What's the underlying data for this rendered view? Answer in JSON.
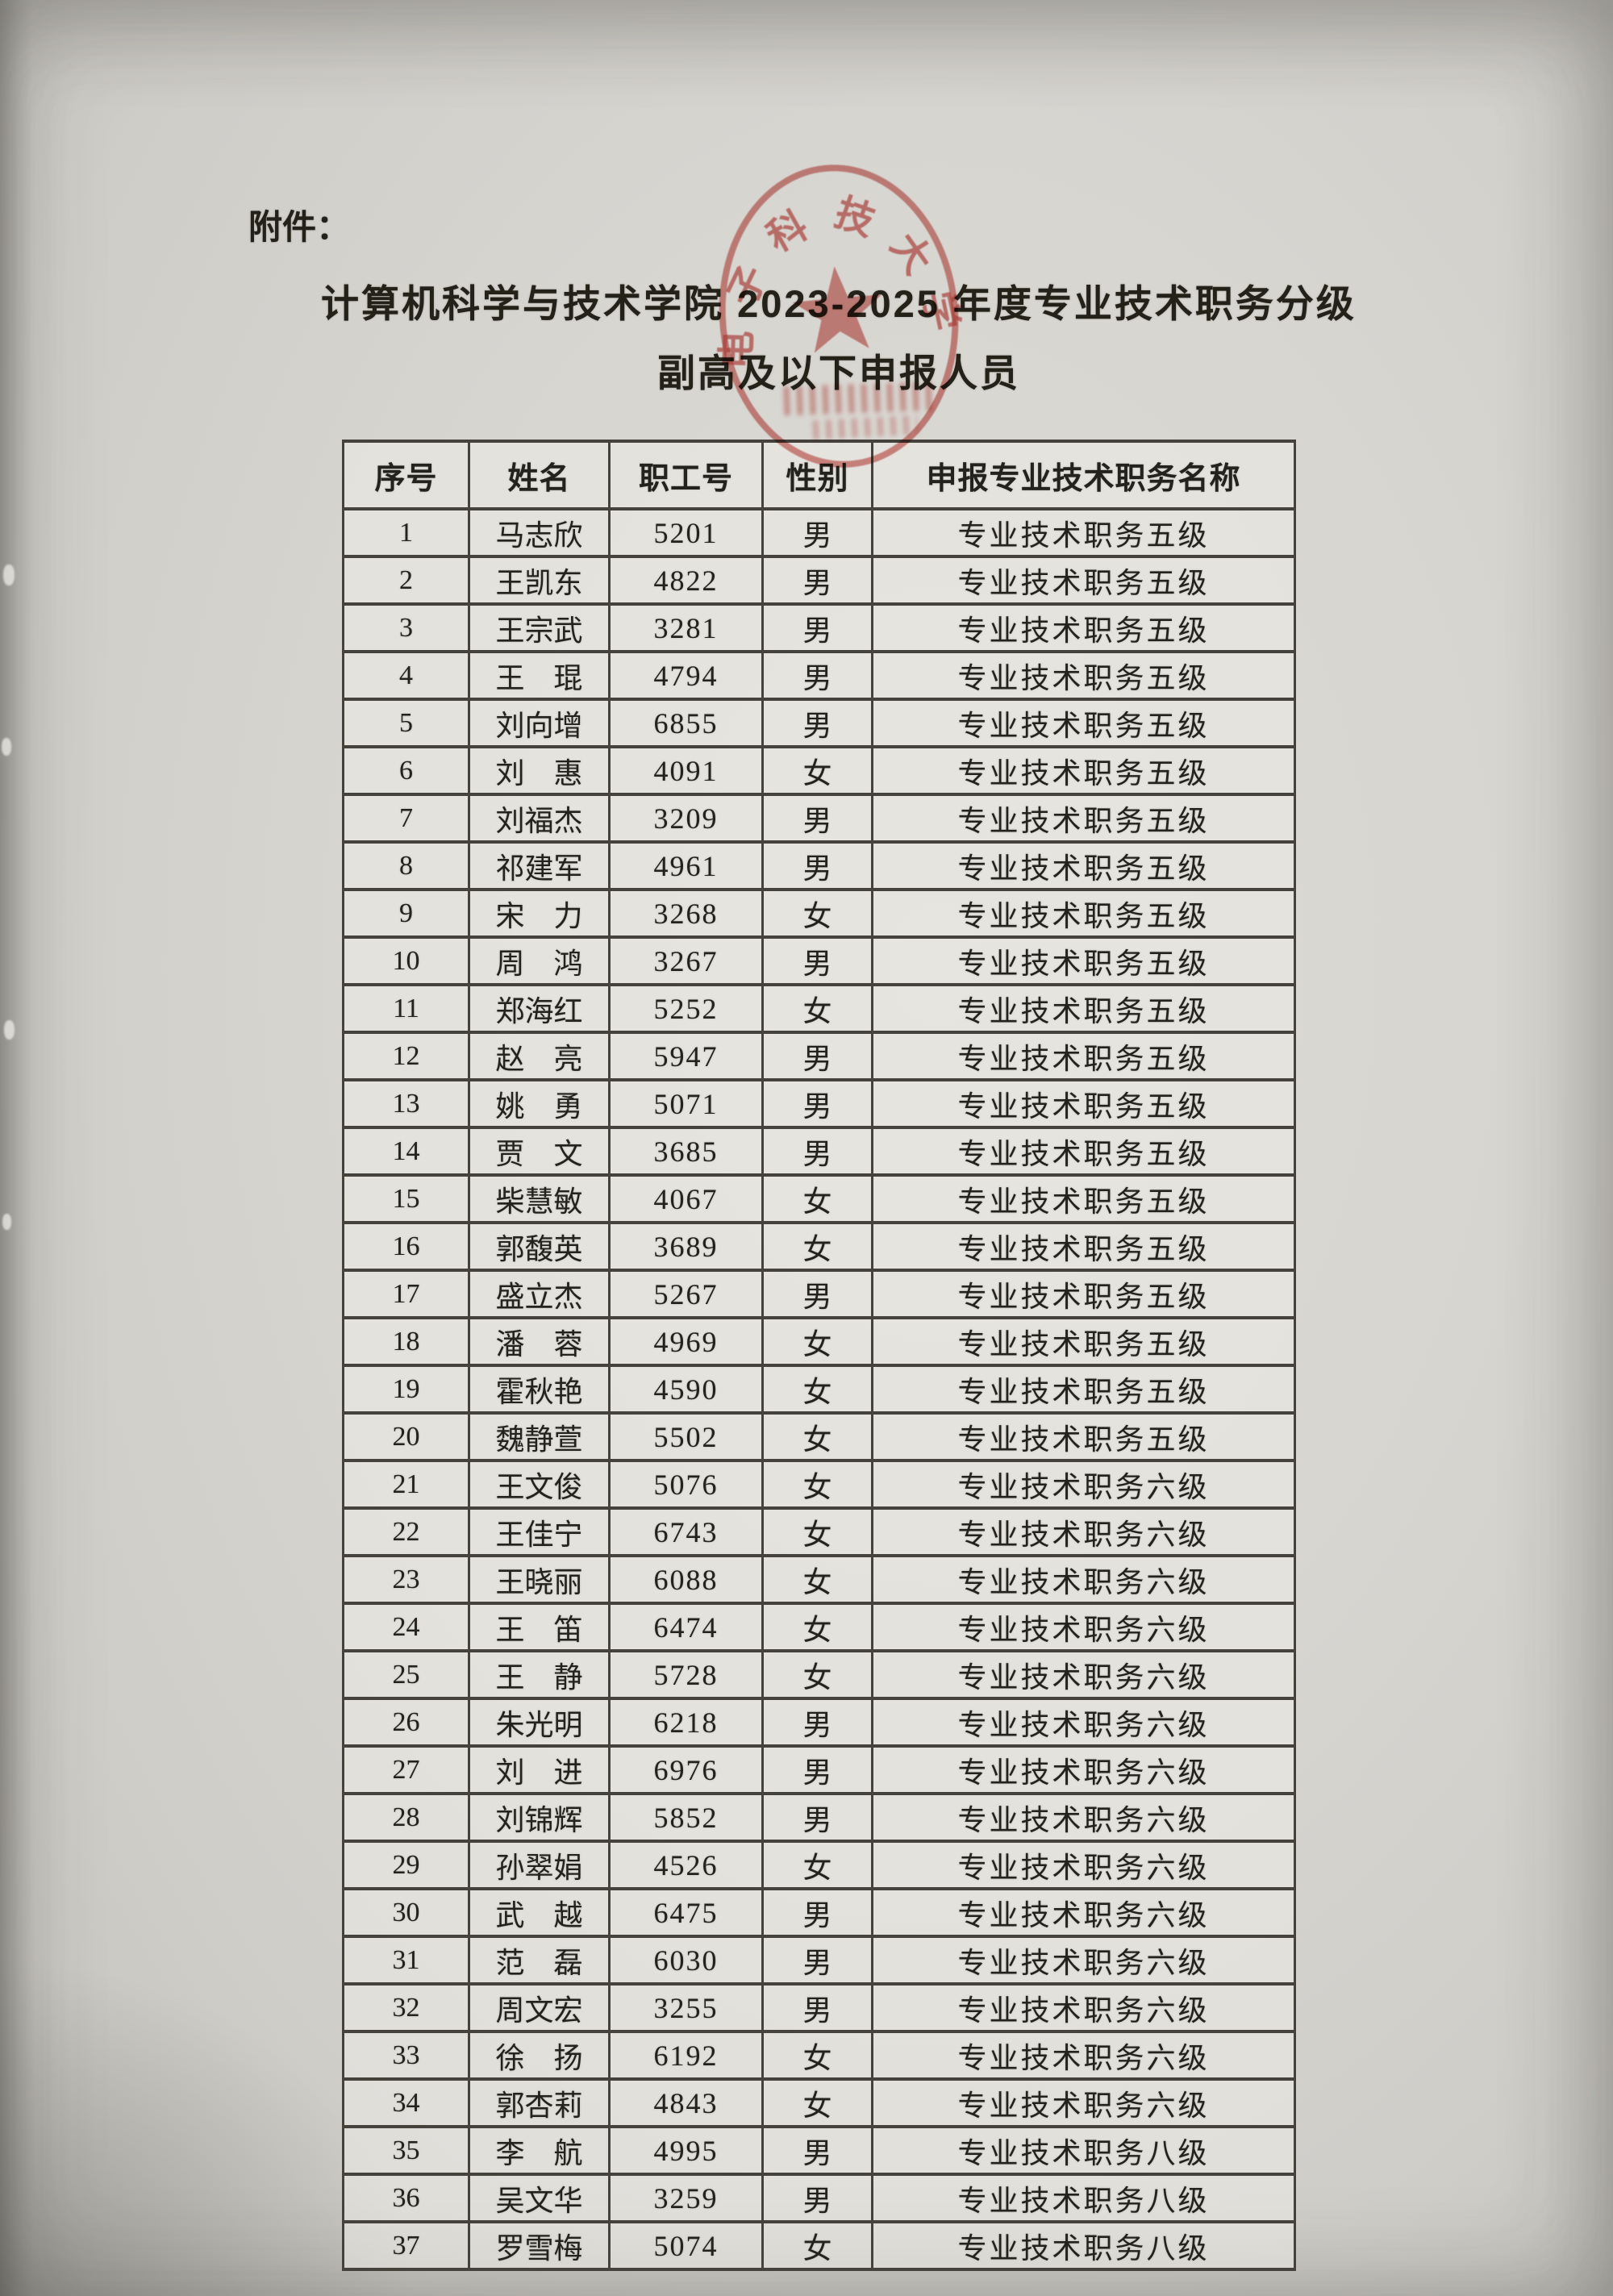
{
  "page": {
    "attachment_label": "附件：",
    "title_line1": "计算机科学与技术学院 2023-2025 年度专业技术职务分级",
    "title_line2": "副高及以下申报人员"
  },
  "stamp": {
    "arc_text": "电子科技大学",
    "color": "#c64840"
  },
  "table": {
    "headers": [
      "序号",
      "姓名",
      "职工号",
      "性别",
      "申报专业技术职务名称"
    ],
    "rows": [
      [
        "1",
        "马志欣",
        "5201",
        "男",
        "专业技术职务五级"
      ],
      [
        "2",
        "王凯东",
        "4822",
        "男",
        "专业技术职务五级"
      ],
      [
        "3",
        "王宗武",
        "3281",
        "男",
        "专业技术职务五级"
      ],
      [
        "4",
        "王　琨",
        "4794",
        "男",
        "专业技术职务五级"
      ],
      [
        "5",
        "刘向增",
        "6855",
        "男",
        "专业技术职务五级"
      ],
      [
        "6",
        "刘　惠",
        "4091",
        "女",
        "专业技术职务五级"
      ],
      [
        "7",
        "刘福杰",
        "3209",
        "男",
        "专业技术职务五级"
      ],
      [
        "8",
        "祁建军",
        "4961",
        "男",
        "专业技术职务五级"
      ],
      [
        "9",
        "宋　力",
        "3268",
        "女",
        "专业技术职务五级"
      ],
      [
        "10",
        "周　鸿",
        "3267",
        "男",
        "专业技术职务五级"
      ],
      [
        "11",
        "郑海红",
        "5252",
        "女",
        "专业技术职务五级"
      ],
      [
        "12",
        "赵　亮",
        "5947",
        "男",
        "专业技术职务五级"
      ],
      [
        "13",
        "姚　勇",
        "5071",
        "男",
        "专业技术职务五级"
      ],
      [
        "14",
        "贾　文",
        "3685",
        "男",
        "专业技术职务五级"
      ],
      [
        "15",
        "柴慧敏",
        "4067",
        "女",
        "专业技术职务五级"
      ],
      [
        "16",
        "郭馥英",
        "3689",
        "女",
        "专业技术职务五级"
      ],
      [
        "17",
        "盛立杰",
        "5267",
        "男",
        "专业技术职务五级"
      ],
      [
        "18",
        "潘　蓉",
        "4969",
        "女",
        "专业技术职务五级"
      ],
      [
        "19",
        "霍秋艳",
        "4590",
        "女",
        "专业技术职务五级"
      ],
      [
        "20",
        "魏静萱",
        "5502",
        "女",
        "专业技术职务五级"
      ],
      [
        "21",
        "王文俊",
        "5076",
        "女",
        "专业技术职务六级"
      ],
      [
        "22",
        "王佳宁",
        "6743",
        "女",
        "专业技术职务六级"
      ],
      [
        "23",
        "王晓丽",
        "6088",
        "女",
        "专业技术职务六级"
      ],
      [
        "24",
        "王　笛",
        "6474",
        "女",
        "专业技术职务六级"
      ],
      [
        "25",
        "王　静",
        "5728",
        "女",
        "专业技术职务六级"
      ],
      [
        "26",
        "朱光明",
        "6218",
        "男",
        "专业技术职务六级"
      ],
      [
        "27",
        "刘　进",
        "6976",
        "男",
        "专业技术职务六级"
      ],
      [
        "28",
        "刘锦辉",
        "5852",
        "男",
        "专业技术职务六级"
      ],
      [
        "29",
        "孙翠娟",
        "4526",
        "女",
        "专业技术职务六级"
      ],
      [
        "30",
        "武　越",
        "6475",
        "男",
        "专业技术职务六级"
      ],
      [
        "31",
        "范　磊",
        "6030",
        "男",
        "专业技术职务六级"
      ],
      [
        "32",
        "周文宏",
        "3255",
        "男",
        "专业技术职务六级"
      ],
      [
        "33",
        "徐　扬",
        "6192",
        "女",
        "专业技术职务六级"
      ],
      [
        "34",
        "郭杏莉",
        "4843",
        "女",
        "专业技术职务六级"
      ],
      [
        "35",
        "李　航",
        "4995",
        "男",
        "专业技术职务八级"
      ],
      [
        "36",
        "吴文华",
        "3259",
        "男",
        "专业技术职务八级"
      ],
      [
        "37",
        "罗雪梅",
        "5074",
        "女",
        "专业技术职务八级"
      ]
    ]
  }
}
